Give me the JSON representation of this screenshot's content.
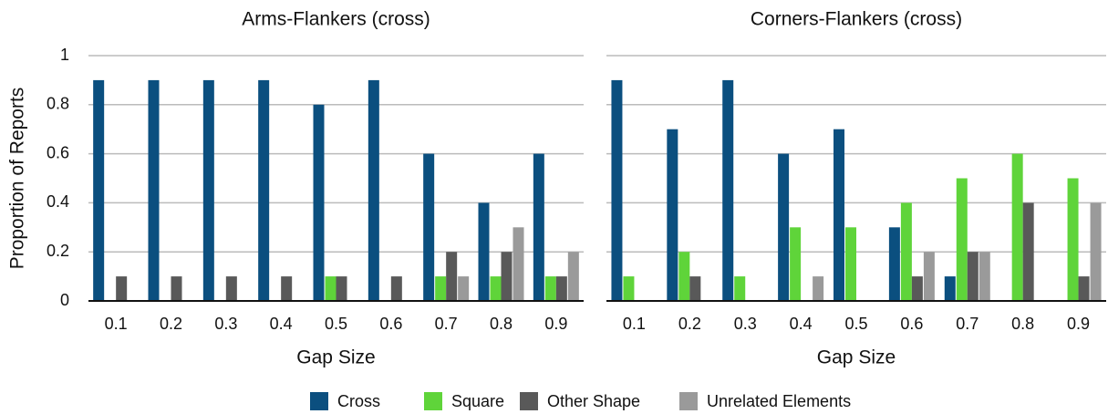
{
  "chart_data": [
    {
      "type": "bar",
      "title": "Arms-Flankers (cross)",
      "x_label": "Gap Size",
      "y_label": "Proportion of Reports",
      "categories": [
        "0.1",
        "0.2",
        "0.3",
        "0.4",
        "0.5",
        "0.6",
        "0.7",
        "0.8",
        "0.9"
      ],
      "series": [
        {
          "name": "Cross",
          "color": "#0b4f7f",
          "values": [
            0.9,
            0.9,
            0.9,
            0.9,
            0.8,
            0.9,
            0.6,
            0.4,
            0.6
          ]
        },
        {
          "name": "Square",
          "color": "#5fd43a",
          "values": [
            0,
            0,
            0,
            0,
            0.1,
            0,
            0.1,
            0.1,
            0.1
          ]
        },
        {
          "name": "Other Shape",
          "color": "#595959",
          "values": [
            0.1,
            0.1,
            0.1,
            0.1,
            0.1,
            0.1,
            0.2,
            0.2,
            0.1
          ]
        },
        {
          "name": "Unrelated Elements",
          "color": "#9a9a9a",
          "values": [
            0,
            0,
            0,
            0,
            0,
            0,
            0.1,
            0.3,
            0.2
          ]
        }
      ],
      "ylim": [
        0,
        1
      ],
      "yticks": [
        0,
        0.2,
        0.4,
        0.6,
        0.8,
        1
      ],
      "grid": true,
      "legend": "bottom"
    },
    {
      "type": "bar",
      "title": "Corners-Flankers (cross)",
      "x_label": "Gap Size",
      "categories": [
        "0.1",
        "0.2",
        "0.3",
        "0.4",
        "0.5",
        "0.6",
        "0.7",
        "0.8",
        "0.9"
      ],
      "series": [
        {
          "name": "Cross",
          "color": "#0b4f7f",
          "values": [
            0.9,
            0.7,
            0.9,
            0.6,
            0.7,
            0.3,
            0.1,
            0,
            0
          ]
        },
        {
          "name": "Square",
          "color": "#5fd43a",
          "values": [
            0.1,
            0.2,
            0.1,
            0.3,
            0.3,
            0.4,
            0.5,
            0.6,
            0.5
          ]
        },
        {
          "name": "Other Shape",
          "color": "#595959",
          "values": [
            0,
            0.1,
            0,
            0,
            0,
            0.1,
            0.2,
            0.4,
            0.1
          ]
        },
        {
          "name": "Unrelated Elements",
          "color": "#9a9a9a",
          "values": [
            0,
            0,
            0,
            0.1,
            0,
            0.2,
            0.2,
            0,
            0.4
          ]
        }
      ],
      "ylim": [
        0,
        1
      ],
      "yticks": [
        0,
        0.2,
        0.4,
        0.6,
        0.8,
        1
      ],
      "grid": true
    }
  ]
}
